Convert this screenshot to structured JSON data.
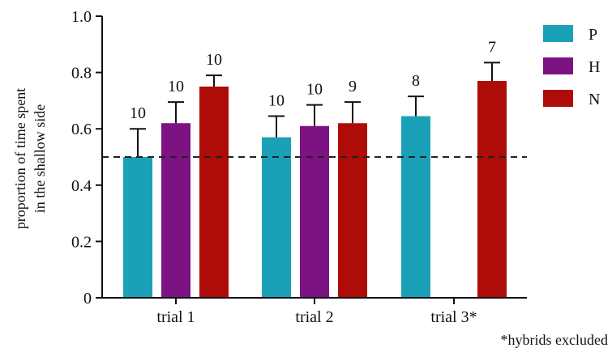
{
  "chart_data": {
    "type": "bar",
    "categories": [
      "trial 1",
      "trial 2",
      "trial 3*"
    ],
    "series": [
      {
        "name": "P",
        "color": "#1ba1b7",
        "values": [
          0.5,
          0.57,
          0.645
        ],
        "errors": [
          0.1,
          0.075,
          0.07
        ],
        "n": [
          "10",
          "10",
          "8"
        ]
      },
      {
        "name": "H",
        "color": "#7d1283",
        "values": [
          0.62,
          0.61,
          null
        ],
        "errors": [
          0.075,
          0.075,
          null
        ],
        "n": [
          "10",
          "10",
          ""
        ]
      },
      {
        "name": "N",
        "color": "#ae0c09",
        "values": [
          0.75,
          0.62,
          0.77
        ],
        "errors": [
          0.04,
          0.075,
          0.065
        ],
        "n": [
          "10",
          "9",
          "7"
        ]
      }
    ],
    "ylabel_line1": "proportion of time spent",
    "ylabel_line2": "in the shallow side",
    "xlabel": "",
    "ylim": [
      0,
      1.0
    ],
    "yticks": [
      "0",
      "0.2",
      "0.4",
      "0.6",
      "0.8",
      "1.0"
    ],
    "reference_line": 0.5,
    "legend_position": "top-right",
    "footnote": "*hybrids excluded",
    "grid": false
  }
}
